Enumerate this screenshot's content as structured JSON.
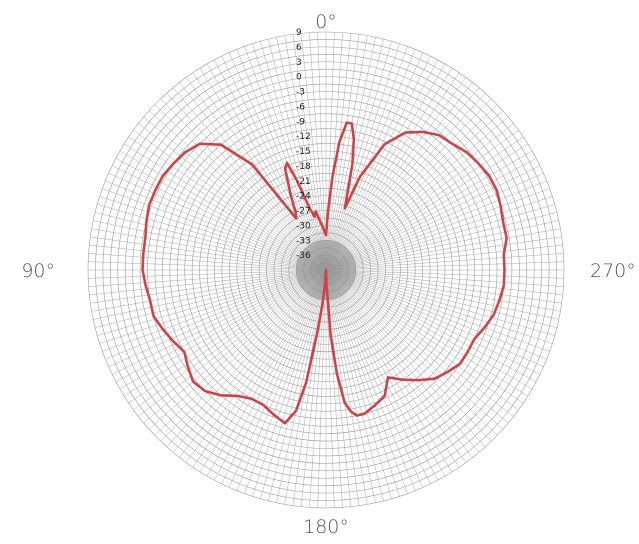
{
  "chart_data": {
    "type": "line",
    "coordinate_system": "polar",
    "title": "",
    "radial_axis": {
      "unit": "",
      "range": [
        -39,
        9
      ],
      "ticks": [
        9,
        6,
        3,
        0,
        -3,
        -6,
        -9,
        -12,
        -15,
        -18,
        -21,
        -24,
        -27,
        -30,
        -33,
        -36
      ],
      "tick_labels": [
        "9",
        "6",
        "3",
        "0",
        "-3",
        "-6",
        "-9",
        "-12",
        "-15",
        "-18",
        "-21",
        "-24",
        "-27",
        "-30",
        "-33",
        "-36"
      ]
    },
    "angular_axis": {
      "direction": "counterclockwise",
      "zero_at": "top",
      "labels": [
        {
          "angle": 0,
          "text": "0°"
        },
        {
          "angle": 90,
          "text": "90°"
        },
        {
          "angle": 180,
          "text": "180°"
        },
        {
          "angle": 270,
          "text": "270°"
        }
      ]
    },
    "grid": true,
    "series": [
      {
        "color": "#c8464a",
        "angles": [
          0,
          5,
          10,
          12,
          15,
          18,
          20,
          22,
          25,
          28,
          30,
          35,
          40,
          45,
          50,
          55,
          60,
          65,
          70,
          75,
          80,
          85,
          90,
          95,
          100,
          105,
          110,
          115,
          120,
          125,
          130,
          135,
          140,
          145,
          150,
          155,
          160,
          165,
          168,
          170,
          172,
          174,
          176,
          178,
          180,
          182,
          184,
          186,
          188,
          190,
          192,
          195,
          200,
          205,
          210,
          215,
          220,
          225,
          230,
          235,
          240,
          245,
          250,
          255,
          260,
          265,
          270,
          275,
          280,
          285,
          290,
          295,
          300,
          305,
          310,
          315,
          320,
          325,
          330,
          335,
          340,
          343,
          346,
          348,
          350,
          352,
          354,
          356,
          358,
          360
        ],
        "values": [
          -32,
          -30,
          -27,
          -28,
          -26,
          -20,
          -16,
          -17,
          -22,
          -26,
          -27,
          -13,
          -6,
          -3,
          -2,
          -1.5,
          -1,
          -1,
          -1,
          -1.5,
          -2,
          -2,
          -2,
          -2.5,
          -3,
          -3,
          -4,
          -5,
          -6,
          -5,
          -4,
          -4.5,
          -6,
          -8,
          -9,
          -9,
          -8,
          -7,
          -10,
          -16,
          -26,
          -32,
          -36,
          -39,
          -39,
          -36,
          -26,
          -18,
          -12,
          -10,
          -9,
          -9,
          -10,
          -11,
          -14,
          -12,
          -10,
          -8,
          -7,
          -6,
          -6,
          -6,
          -5,
          -4,
          -3.5,
          -3,
          -3,
          -3,
          -2,
          -2,
          -1.5,
          -1,
          -1,
          -1.5,
          -2,
          -3,
          -3.5,
          -5,
          -7,
          -11,
          -19,
          -26,
          -17,
          -12,
          -9,
          -9,
          -13,
          -20,
          -27,
          -32
        ]
      }
    ]
  }
}
